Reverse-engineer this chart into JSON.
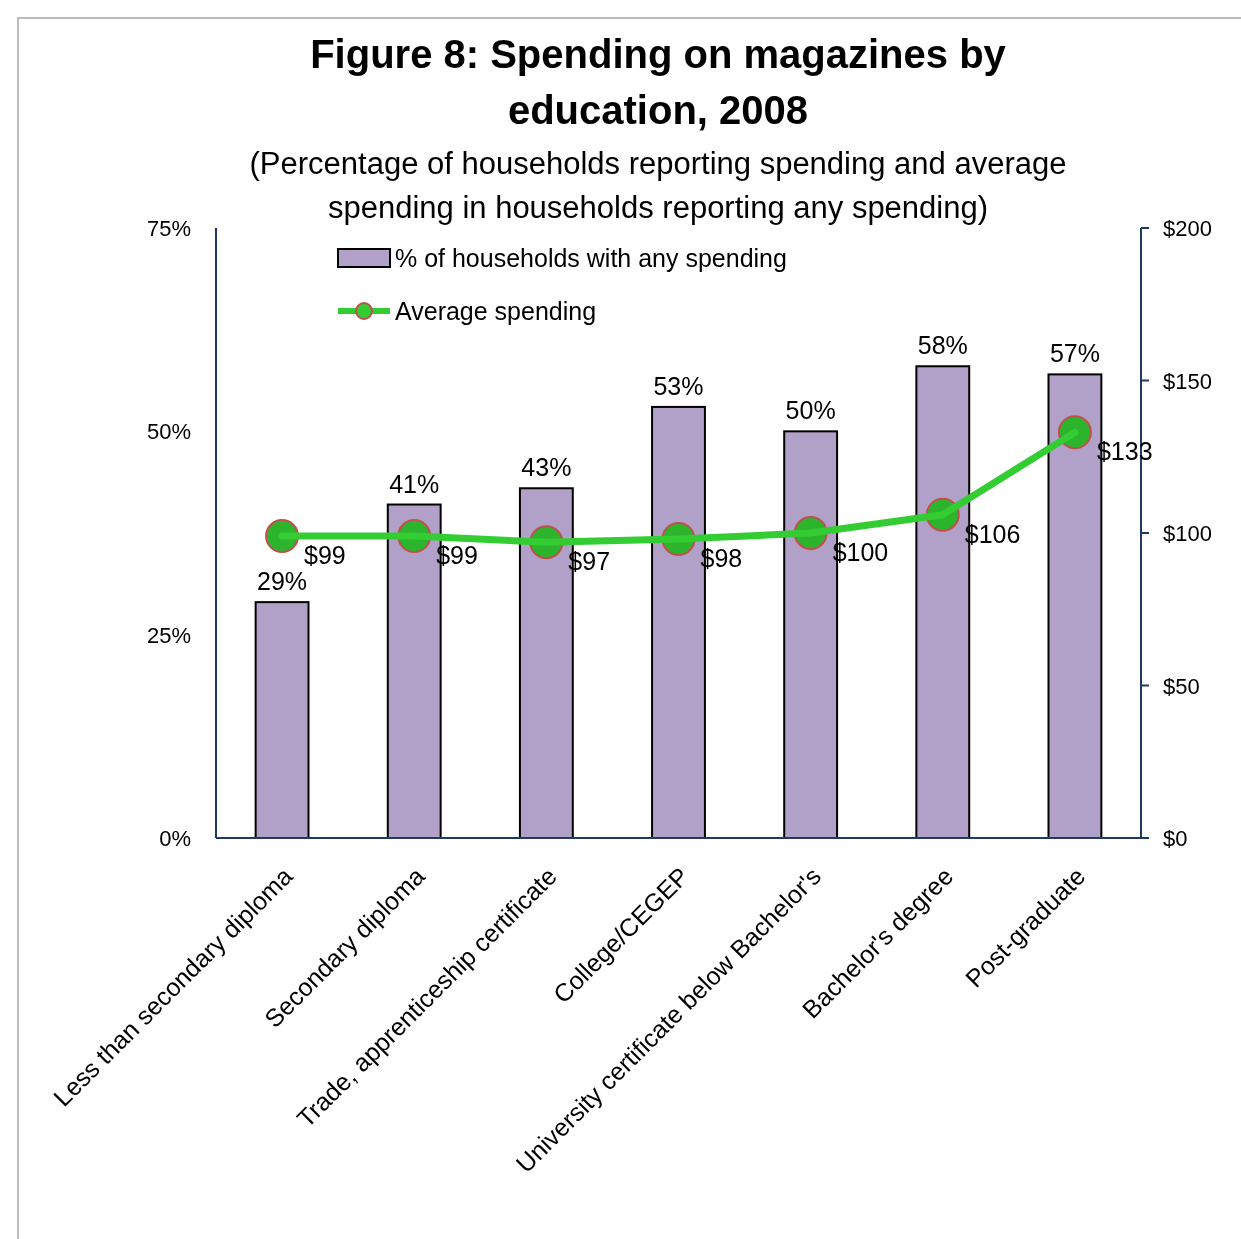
{
  "chart_data": {
    "type": "bar",
    "title": "Figure 8: Spending on magazines by education, 2008",
    "subtitle": "(Percentage of households reporting spending and average spending in households reporting any spending)",
    "categories": [
      "Less than secondary diploma",
      "Secondary diploma",
      "Trade, apprenticeship certificate",
      "College/CEGEP",
      "University certificate below Bachelor's",
      "Bachelor's degree",
      "Post-graduate"
    ],
    "series": [
      {
        "name": "% of households with any spending",
        "color": "#b1a0c7",
        "values": [
          29,
          41,
          43,
          53,
          50,
          58,
          57
        ],
        "value_labels": [
          "29%",
          "41%",
          "43%",
          "53%",
          "50%",
          "58%",
          "57%"
        ]
      },
      {
        "name": "Average spending",
        "type": "line",
        "axis": "y2",
        "color": "#33cc33",
        "marker": "circle",
        "values": [
          99,
          99,
          97,
          98,
          100,
          106,
          133
        ],
        "value_labels": [
          "$99",
          "$99",
          "$97",
          "$98",
          "$100",
          "$106",
          "$133"
        ]
      }
    ],
    "ylim": [
      0,
      75
    ],
    "yticks": [
      {
        "value": 0,
        "label": "0%"
      },
      {
        "value": 25,
        "label": "25%"
      },
      {
        "value": 50,
        "label": "50%"
      },
      {
        "value": 75,
        "label": "75%"
      }
    ],
    "y2lim": [
      0,
      200
    ],
    "y2ticks": [
      {
        "value": 0,
        "label": "$0"
      },
      {
        "value": 50,
        "label": "$50"
      },
      {
        "value": 100,
        "label": "$100"
      },
      {
        "value": 150,
        "label": "$150"
      },
      {
        "value": 200,
        "label": "$200"
      }
    ],
    "legend": "top left",
    "grid": false
  }
}
